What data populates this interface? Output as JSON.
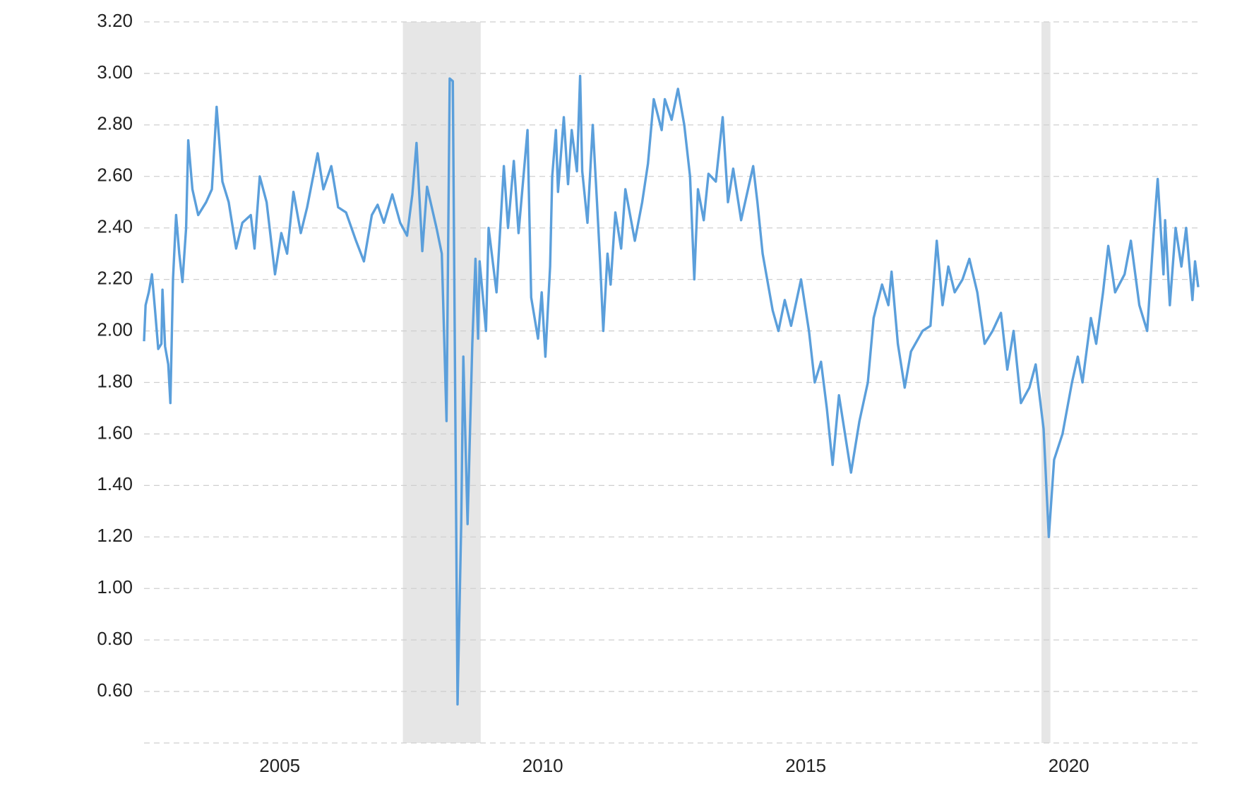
{
  "chart_data": {
    "type": "line",
    "x": [
      2002.42,
      2002.45,
      2002.51,
      2002.57,
      2002.63,
      2002.69,
      2002.75,
      2002.77,
      2002.82,
      2002.88,
      2002.92,
      2002.97,
      2003.03,
      2003.09,
      2003.15,
      2003.22,
      2003.26,
      2003.34,
      2003.45,
      2003.6,
      2003.71,
      2003.8,
      2003.91,
      2004.03,
      2004.17,
      2004.29,
      2004.45,
      2004.52,
      2004.62,
      2004.75,
      2004.91,
      2005.03,
      2005.14,
      2005.26,
      2005.4,
      2005.52,
      2005.72,
      2005.83,
      2005.98,
      2006.11,
      2006.26,
      2006.45,
      2006.6,
      2006.75,
      2006.86,
      2006.98,
      2007.14,
      2007.29,
      2007.42,
      2007.52,
      2007.6,
      2007.71,
      2007.8,
      2007.98,
      2008.08,
      2008.17,
      2008.23,
      2008.29,
      2008.38,
      2008.45,
      2008.49,
      2008.57,
      2008.66,
      2008.72,
      2008.77,
      2008.8,
      2008.92,
      2008.97,
      2009.12,
      2009.26,
      2009.34,
      2009.45,
      2009.54,
      2009.71,
      2009.78,
      2009.91,
      2009.98,
      2010.05,
      2010.14,
      2010.18,
      2010.25,
      2010.29,
      2010.4,
      2010.48,
      2010.55,
      2010.65,
      2010.71,
      2010.75,
      2010.85,
      2010.95,
      2011.03,
      2011.09,
      2011.15,
      2011.23,
      2011.29,
      2011.38,
      2011.49,
      2011.57,
      2011.75,
      2011.89,
      2012.0,
      2012.11,
      2012.26,
      2012.32,
      2012.45,
      2012.57,
      2012.69,
      2012.8,
      2012.88,
      2012.95,
      2013.06,
      2013.15,
      2013.29,
      2013.42,
      2013.52,
      2013.62,
      2013.77,
      2014.0,
      2014.08,
      2014.18,
      2014.37,
      2014.48,
      2014.6,
      2014.72,
      2014.91,
      2015.06,
      2015.17,
      2015.29,
      2015.4,
      2015.51,
      2015.63,
      2015.86,
      2016.02,
      2016.18,
      2016.29,
      2016.45,
      2016.57,
      2016.63,
      2016.75,
      2016.88,
      2017.0,
      2017.22,
      2017.37,
      2017.49,
      2017.6,
      2017.71,
      2017.83,
      2017.98,
      2018.11,
      2018.26,
      2018.4,
      2018.55,
      2018.71,
      2018.83,
      2018.95,
      2019.09,
      2019.25,
      2019.37,
      2019.52,
      2019.62,
      2019.72,
      2019.88,
      2020.06,
      2020.17,
      2020.26,
      2020.42,
      2020.52,
      2020.65,
      2020.75,
      2020.88,
      2021.06,
      2021.18,
      2021.34,
      2021.49,
      2021.62,
      2021.69,
      2021.8,
      2021.83,
      2021.92,
      2022.03,
      2022.14,
      2022.23,
      2022.35,
      2022.4,
      2022.46
    ],
    "series": [
      {
        "color": "#5b9fdb",
        "values": [
          1.96,
          2.1,
          2.15,
          2.22,
          2.08,
          1.93,
          1.95,
          2.16,
          1.94,
          1.87,
          1.72,
          2.2,
          2.45,
          2.3,
          2.19,
          2.4,
          2.74,
          2.55,
          2.45,
          2.5,
          2.55,
          2.87,
          2.58,
          2.5,
          2.32,
          2.42,
          2.45,
          2.32,
          2.6,
          2.5,
          2.22,
          2.38,
          2.3,
          2.54,
          2.38,
          2.48,
          2.69,
          2.55,
          2.64,
          2.48,
          2.46,
          2.35,
          2.27,
          2.45,
          2.49,
          2.42,
          2.53,
          2.42,
          2.37,
          2.53,
          2.73,
          2.31,
          2.56,
          2.4,
          2.3,
          1.65,
          2.98,
          2.97,
          0.55,
          1.25,
          1.9,
          1.25,
          1.95,
          2.28,
          1.97,
          2.27,
          2.0,
          2.4,
          2.15,
          2.64,
          2.4,
          2.66,
          2.38,
          2.78,
          2.13,
          1.97,
          2.15,
          1.9,
          2.25,
          2.6,
          2.78,
          2.54,
          2.83,
          2.57,
          2.78,
          2.62,
          2.99,
          2.62,
          2.42,
          2.8,
          2.5,
          2.27,
          2.0,
          2.3,
          2.18,
          2.46,
          2.32,
          2.55,
          2.35,
          2.5,
          2.65,
          2.9,
          2.78,
          2.9,
          2.82,
          2.94,
          2.8,
          2.6,
          2.2,
          2.55,
          2.43,
          2.61,
          2.58,
          2.83,
          2.5,
          2.63,
          2.43,
          2.64,
          2.5,
          2.3,
          2.08,
          2.0,
          2.12,
          2.02,
          2.2,
          2.0,
          1.8,
          1.88,
          1.7,
          1.48,
          1.75,
          1.45,
          1.65,
          1.8,
          2.05,
          2.18,
          2.1,
          2.23,
          1.95,
          1.78,
          1.92,
          2.0,
          2.02,
          2.35,
          2.1,
          2.25,
          2.15,
          2.2,
          2.28,
          2.15,
          1.95,
          2.0,
          2.07,
          1.85,
          2.0,
          1.72,
          1.78,
          1.87,
          1.62,
          1.2,
          1.5,
          1.6,
          1.8,
          1.9,
          1.8,
          2.05,
          1.95,
          2.15,
          2.33,
          2.15,
          2.22,
          2.35,
          2.1,
          2.0,
          2.4,
          2.59,
          2.22,
          2.43,
          2.1,
          2.4,
          2.25,
          2.4,
          2.12,
          2.27,
          2.17
        ]
      }
    ],
    "recessions": [
      [
        2007.34,
        2008.82
      ],
      [
        2019.48,
        2019.65
      ]
    ],
    "recession_color": "#e6e6e6",
    "xlim": [
      2002.42,
      2022.46
    ],
    "xticks": [
      2005,
      2010,
      2015,
      2020
    ],
    "ylim": [
      0.4,
      3.2
    ],
    "yticks": [
      {
        "value": 0.6,
        "label": "0.60"
      },
      {
        "value": 0.8,
        "label": "0.80"
      },
      {
        "value": 1.0,
        "label": "1.00"
      },
      {
        "value": 1.2,
        "label": "1.20"
      },
      {
        "value": 1.4,
        "label": "1.40"
      },
      {
        "value": 1.6,
        "label": "1.60"
      },
      {
        "value": 1.8,
        "label": "1.80"
      },
      {
        "value": 2.0,
        "label": "2.00"
      },
      {
        "value": 2.2,
        "label": "2.20"
      },
      {
        "value": 2.4,
        "label": "2.40"
      },
      {
        "value": 2.6,
        "label": "2.60"
      },
      {
        "value": 2.8,
        "label": "2.80"
      },
      {
        "value": 3.0,
        "label": "3.00"
      },
      {
        "value": 3.2,
        "label": "3.20"
      }
    ],
    "grid": true
  }
}
